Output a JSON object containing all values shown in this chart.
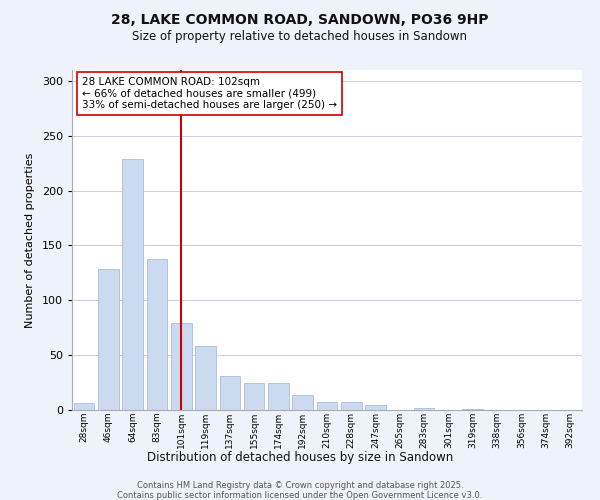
{
  "title": "28, LAKE COMMON ROAD, SANDOWN, PO36 9HP",
  "subtitle": "Size of property relative to detached houses in Sandown",
  "xlabel": "Distribution of detached houses by size in Sandown",
  "ylabel": "Number of detached properties",
  "bin_labels": [
    "28sqm",
    "46sqm",
    "64sqm",
    "83sqm",
    "101sqm",
    "119sqm",
    "137sqm",
    "155sqm",
    "174sqm",
    "192sqm",
    "210sqm",
    "228sqm",
    "247sqm",
    "265sqm",
    "283sqm",
    "301sqm",
    "319sqm",
    "338sqm",
    "356sqm",
    "374sqm",
    "392sqm"
  ],
  "bar_values": [
    6,
    129,
    229,
    138,
    79,
    58,
    31,
    25,
    25,
    14,
    7,
    7,
    5,
    0,
    2,
    0,
    1,
    0,
    0,
    0,
    0
  ],
  "bar_color": "#ccdaf0",
  "bar_edge_color": "#a8bedd",
  "vline_index": 4,
  "vline_color": "#cc0000",
  "annotation_line1": "28 LAKE COMMON ROAD: 102sqm",
  "annotation_line2": "← 66% of detached houses are smaller (499)",
  "annotation_line3": "33% of semi-detached houses are larger (250) →",
  "annotation_box_color": "#ffffff",
  "annotation_box_edge_color": "#cc0000",
  "ylim": [
    0,
    310
  ],
  "yticks": [
    0,
    50,
    100,
    150,
    200,
    250,
    300
  ],
  "footer_line1": "Contains HM Land Registry data © Crown copyright and database right 2025.",
  "footer_line2": "Contains public sector information licensed under the Open Government Licence v3.0.",
  "bg_color": "#eef2fb",
  "plot_bg_color": "#ffffff",
  "grid_color": "#c5cfe8"
}
